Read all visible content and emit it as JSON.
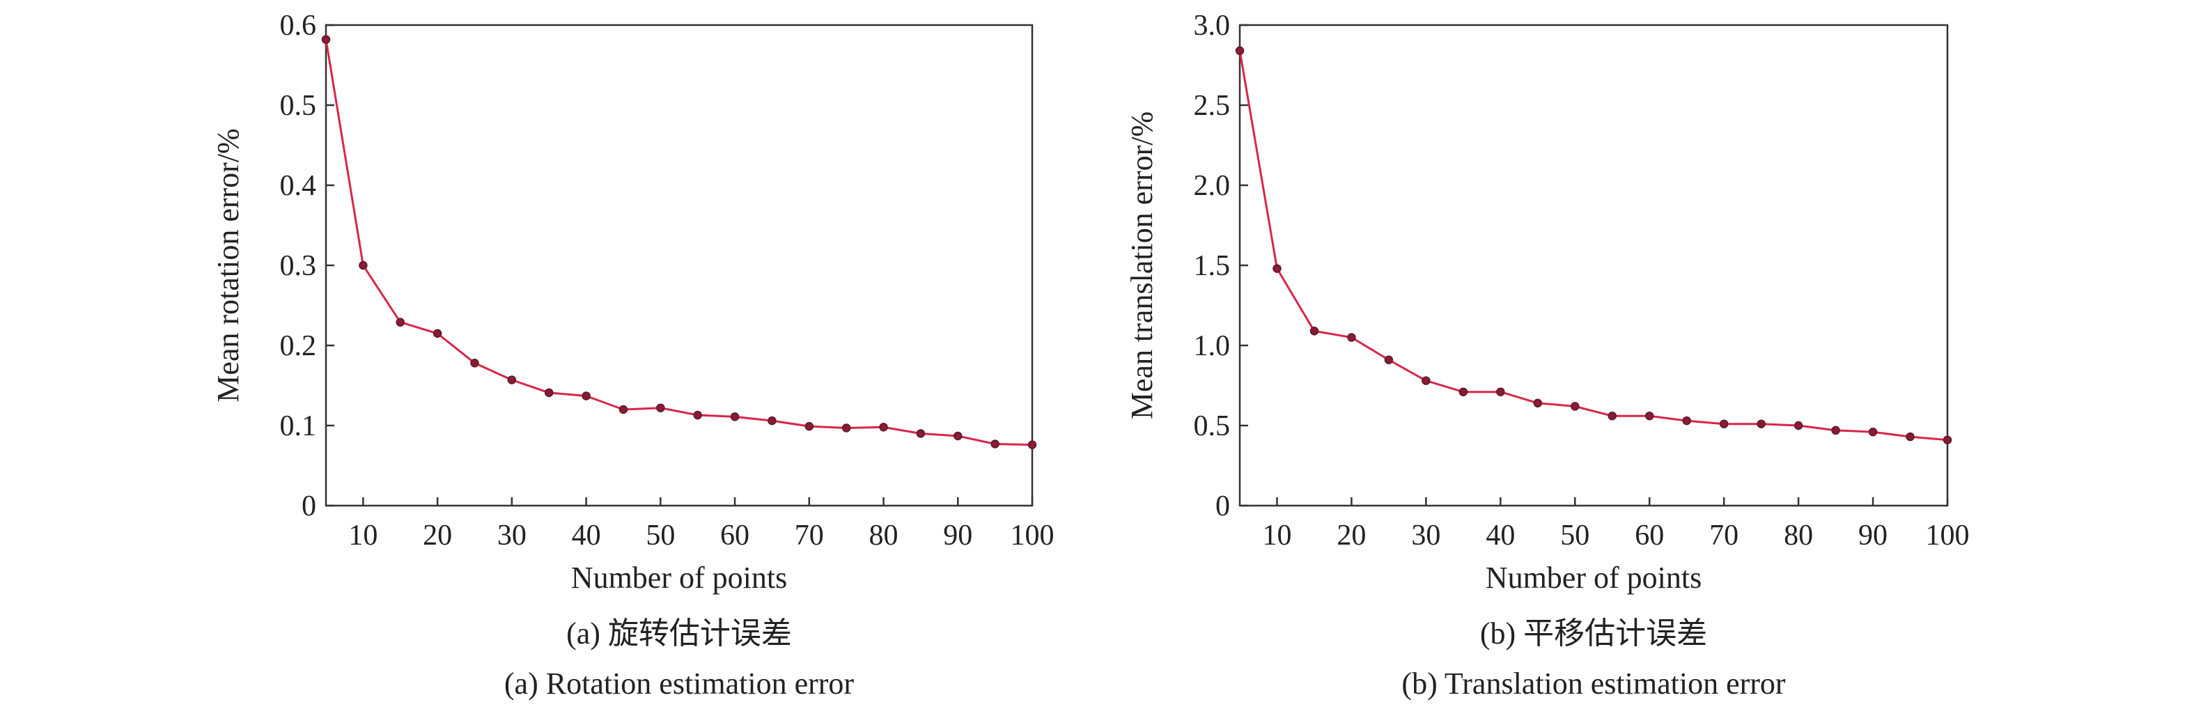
{
  "colors": {
    "line": "#d9264a",
    "marker": "#8b1a35",
    "axis": "#333333"
  },
  "chart_data": [
    {
      "type": "line",
      "xlabel": "Number of points",
      "ylabel": "Mean rotation error/%",
      "caption_cn": "(a) 旋转估计误差",
      "caption_en": "(a) Rotation estimation error",
      "xlim": [
        5,
        100
      ],
      "ylim": [
        0,
        0.6
      ],
      "x_ticks": [
        10,
        20,
        30,
        40,
        50,
        60,
        70,
        80,
        90,
        100
      ],
      "y_ticks": [
        0,
        0.1,
        0.2,
        0.3,
        0.4,
        0.5,
        0.6
      ],
      "y_tick_labels": [
        "0",
        "0.1",
        "0.2",
        "0.3",
        "0.4",
        "0.5",
        "0.6"
      ],
      "grid": false,
      "x": [
        5,
        10,
        15,
        20,
        25,
        30,
        35,
        40,
        45,
        50,
        55,
        60,
        65,
        70,
        75,
        80,
        85,
        90,
        95,
        100
      ],
      "y": [
        0.582,
        0.3,
        0.229,
        0.215,
        0.178,
        0.157,
        0.141,
        0.137,
        0.12,
        0.122,
        0.113,
        0.111,
        0.106,
        0.099,
        0.097,
        0.098,
        0.09,
        0.087,
        0.077,
        0.076
      ]
    },
    {
      "type": "line",
      "xlabel": "Number of points",
      "ylabel": "Mean translation error/%",
      "caption_cn": "(b) 平移估计误差",
      "caption_en": "(b) Translation estimation error",
      "xlim": [
        5,
        100
      ],
      "ylim": [
        0,
        3.0
      ],
      "x_ticks": [
        10,
        20,
        30,
        40,
        50,
        60,
        70,
        80,
        90,
        100
      ],
      "y_ticks": [
        0,
        0.5,
        1.0,
        1.5,
        2.0,
        2.5,
        3.0
      ],
      "y_tick_labels": [
        "0",
        "0.5",
        "1.0",
        "1.5",
        "2.0",
        "2.5",
        "3.0"
      ],
      "grid": false,
      "x": [
        5,
        10,
        15,
        20,
        25,
        30,
        35,
        40,
        45,
        50,
        55,
        60,
        65,
        70,
        75,
        80,
        85,
        90,
        95,
        100
      ],
      "y": [
        2.84,
        1.48,
        1.09,
        1.05,
        0.91,
        0.78,
        0.71,
        0.71,
        0.64,
        0.62,
        0.56,
        0.56,
        0.53,
        0.51,
        0.51,
        0.5,
        0.47,
        0.46,
        0.43,
        0.41
      ]
    }
  ]
}
